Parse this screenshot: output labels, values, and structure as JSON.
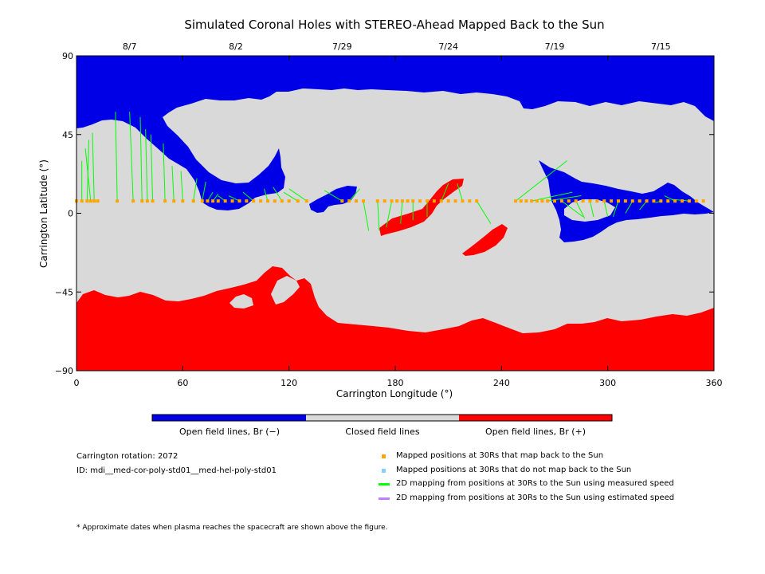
{
  "chart_data": {
    "type": "map",
    "title": "Simulated Coronal Holes with STEREO-Ahead Mapped Back to the Sun",
    "xlabel": "Carrington Longitude (°)",
    "ylabel": "Carrington Latitude (°)",
    "xlim": [
      0,
      360
    ],
    "ylim": [
      -90,
      90
    ],
    "xticks": [
      "0",
      "60",
      "120",
      "180",
      "240",
      "300",
      "360"
    ],
    "yticks": [
      "−90",
      "−45",
      "0",
      "45",
      "90"
    ],
    "date_ticks": [
      {
        "label": "8/7",
        "lon": 30
      },
      {
        "label": "8/2",
        "lon": 90
      },
      {
        "label": "7/29",
        "lon": 150
      },
      {
        "label": "7/24",
        "lon": 210
      },
      {
        "label": "7/19",
        "lon": 270
      },
      {
        "label": "7/15",
        "lon": 330
      }
    ],
    "colorbar": {
      "labels": [
        "Open field lines, Br (−)",
        "Closed field lines",
        "Open field lines, Br (+)"
      ],
      "colors": [
        "#0000e6",
        "#d9d9d9",
        "#ff0000"
      ]
    },
    "field_colors": {
      "negative": "#0000e6",
      "closed": "#d9d9d9",
      "positive": "#ff0000"
    },
    "spacecraft_latitude": 7,
    "mapped_points_lon": [
      0,
      3,
      6,
      8,
      10,
      12,
      23,
      32,
      37,
      40,
      43,
      50,
      55,
      60,
      66,
      71,
      74,
      77,
      80,
      84,
      88,
      92,
      96,
      100,
      104,
      108,
      112,
      116,
      120,
      125,
      130,
      150,
      154,
      158,
      162,
      170,
      174,
      178,
      181,
      184,
      187,
      190,
      194,
      198,
      202,
      206,
      210,
      214,
      218,
      222,
      226,
      248,
      251,
      254,
      257,
      260,
      263,
      266,
      270,
      274,
      278,
      282,
      286,
      290,
      294,
      298,
      302,
      306,
      310,
      314,
      318,
      322,
      326,
      330,
      334,
      338,
      342,
      346,
      350,
      354
    ],
    "mapping_lines": [
      {
        "from": 3,
        "to": [
          3,
          30
        ]
      },
      {
        "from": 6,
        "to": [
          7,
          42
        ]
      },
      {
        "from": 8,
        "to": [
          5,
          37
        ]
      },
      {
        "from": 10,
        "to": [
          9,
          46
        ]
      },
      {
        "from": 23,
        "to": [
          22,
          58
        ]
      },
      {
        "from": 32,
        "to": [
          30,
          58
        ]
      },
      {
        "from": 37,
        "to": [
          36,
          55
        ]
      },
      {
        "from": 40,
        "to": [
          39,
          48
        ]
      },
      {
        "from": 43,
        "to": [
          42,
          45
        ]
      },
      {
        "from": 50,
        "to": [
          49,
          40
        ]
      },
      {
        "from": 55,
        "to": [
          54,
          27
        ]
      },
      {
        "from": 60,
        "to": [
          59,
          24
        ]
      },
      {
        "from": 66,
        "to": [
          68,
          20
        ]
      },
      {
        "from": 71,
        "to": [
          73,
          18
        ]
      },
      {
        "from": 74,
        "to": [
          77,
          12
        ]
      },
      {
        "from": 77,
        "to": [
          80,
          11
        ]
      },
      {
        "from": 84,
        "to": [
          80,
          10
        ]
      },
      {
        "from": 92,
        "to": [
          86,
          10
        ]
      },
      {
        "from": 100,
        "to": [
          94,
          12
        ]
      },
      {
        "from": 108,
        "to": [
          106,
          14
        ]
      },
      {
        "from": 116,
        "to": [
          111,
          15
        ]
      },
      {
        "from": 125,
        "to": [
          117,
          12
        ]
      },
      {
        "from": 130,
        "to": [
          120,
          14
        ]
      },
      {
        "from": 150,
        "to": [
          140,
          13
        ]
      },
      {
        "from": 154,
        "to": [
          160,
          14
        ]
      },
      {
        "from": 162,
        "to": [
          165,
          -10
        ]
      },
      {
        "from": 170,
        "to": [
          171,
          -10
        ]
      },
      {
        "from": 178,
        "to": [
          175,
          -8
        ]
      },
      {
        "from": 184,
        "to": [
          183,
          -6
        ]
      },
      {
        "from": 190,
        "to": [
          190,
          -4
        ]
      },
      {
        "from": 198,
        "to": [
          198,
          -2
        ]
      },
      {
        "from": 206,
        "to": [
          210,
          17
        ]
      },
      {
        "from": 218,
        "to": [
          215,
          17
        ]
      },
      {
        "from": 226,
        "to": [
          234,
          -6
        ]
      },
      {
        "from": 248,
        "to": [
          277,
          30
        ]
      },
      {
        "from": 257,
        "to": [
          280,
          12
        ]
      },
      {
        "from": 266,
        "to": [
          285,
          10
        ]
      },
      {
        "from": 274,
        "to": [
          286,
          -2
        ]
      },
      {
        "from": 282,
        "to": [
          287,
          -3
        ]
      },
      {
        "from": 290,
        "to": [
          292,
          -2
        ]
      },
      {
        "from": 298,
        "to": [
          300,
          -2
        ]
      },
      {
        "from": 306,
        "to": [
          303,
          -2
        ]
      },
      {
        "from": 314,
        "to": [
          310,
          0
        ]
      },
      {
        "from": 322,
        "to": [
          318,
          2
        ]
      },
      {
        "from": 330,
        "to": [
          327,
          6
        ]
      },
      {
        "from": 338,
        "to": [
          332,
          10
        ]
      },
      {
        "from": 346,
        "to": [
          336,
          8
        ]
      }
    ],
    "legend": [
      {
        "label": "Mapped positions at 30Rs that map back to the Sun",
        "color": "#ffa500",
        "kind": "square"
      },
      {
        "label": "Mapped positions at 30Rs that do not map back to the Sun",
        "color": "#87cefa",
        "kind": "square"
      },
      {
        "label": "2D mapping from positions at 30Rs to the Sun using measured speed",
        "color": "#00ff00",
        "kind": "line"
      },
      {
        "label": "2D mapping from positions at 30Rs to the Sun using estimated speed",
        "color": "#bf7fff",
        "kind": "line"
      }
    ]
  },
  "info": {
    "carrington_rotation": "Carrington rotation: 2072",
    "model_id": "ID: mdi__med-cor-poly-std01__med-hel-poly-std01",
    "footnote": "* Approximate dates when plasma reaches the spacecraft are shown above the figure."
  }
}
